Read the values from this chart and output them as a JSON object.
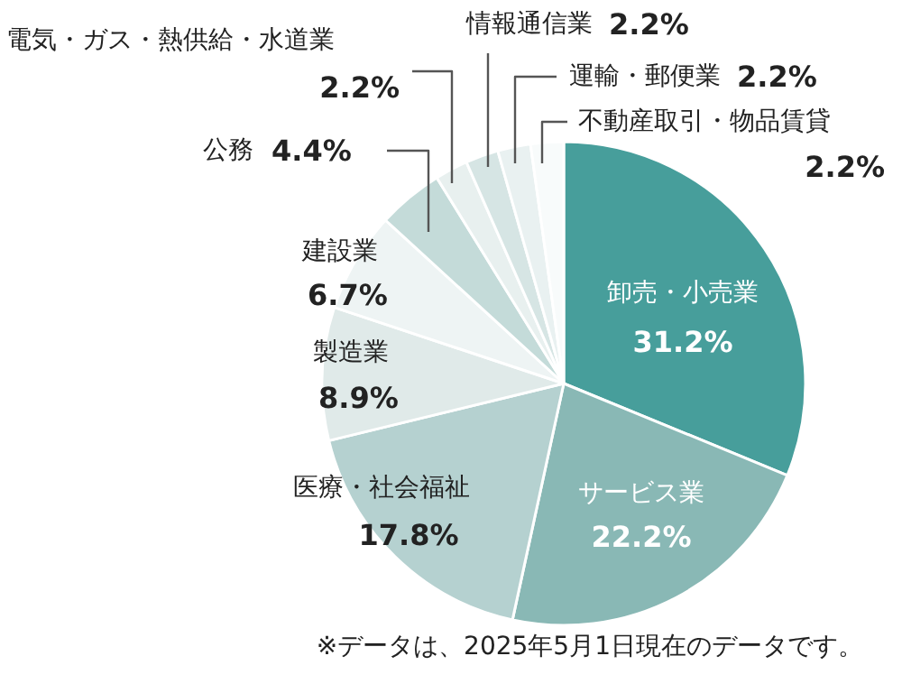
{
  "chart_data": {
    "type": "pie",
    "categories": [
      "卸売・小売業",
      "サービス業",
      "医療・社会福祉",
      "製造業",
      "建設業",
      "公務",
      "電気・ガス・熱供給・水道業",
      "情報通信業",
      "運輸・郵便業",
      "不動産取引・物品賃貸"
    ],
    "values": [
      31.2,
      22.2,
      17.8,
      8.9,
      6.7,
      4.4,
      2.2,
      2.2,
      2.2,
      2.2
    ],
    "value_labels": [
      "31.2%",
      "22.2%",
      "17.8%",
      "8.9%",
      "6.7%",
      "4.4%",
      "2.2%",
      "2.2%",
      "2.2%",
      "2.2%"
    ],
    "colors": [
      "#479e9b",
      "#89b8b5",
      "#b5d1d0",
      "#e0eae9",
      "#eef4f4",
      "#c4dbd9",
      "#e8f0ef",
      "#d6e5e4",
      "#e9f1f1",
      "#f8fbfb"
    ],
    "annotations": [
      "※データは、2025年5月1日現在のデータです。"
    ]
  }
}
